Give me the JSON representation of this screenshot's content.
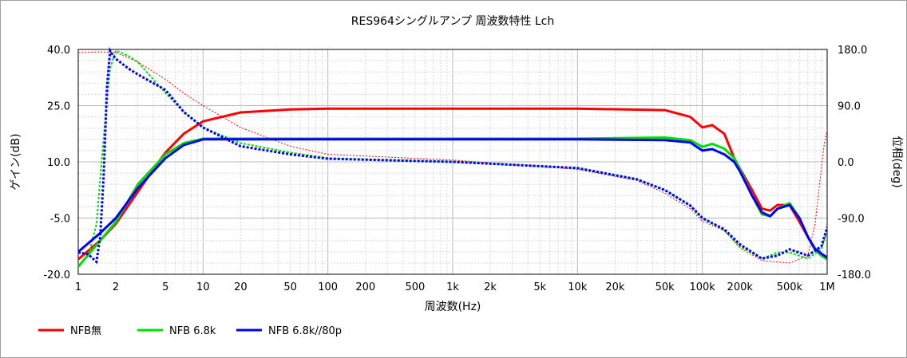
{
  "chart_data": {
    "type": "line",
    "title": "RES964シングルアンプ 周波数特性 Lch",
    "xlabel": "周波数(Hz)",
    "ylabel_left": "ゲイン(dB)",
    "ylabel_right": "位相(deg)",
    "x_scale": "log",
    "xlim": [
      1,
      1000000
    ],
    "ylim_left": [
      -20,
      40
    ],
    "ylim_right": [
      -180,
      180
    ],
    "grid": true,
    "legend_position": "bottom-left",
    "x_ticks": [
      "1",
      "2",
      "5",
      "10",
      "20",
      "50",
      "100",
      "200",
      "500",
      "1k",
      "2k",
      "5k",
      "10k",
      "20k",
      "50k",
      "100k",
      "200k",
      "500k",
      "1M"
    ],
    "x_tick_values": [
      1,
      2,
      5,
      10,
      20,
      50,
      100,
      200,
      500,
      1000,
      2000,
      5000,
      10000,
      20000,
      50000,
      100000,
      200000,
      500000,
      1000000
    ],
    "y_ticks_left": [
      "40.0",
      "25.0",
      "10.0",
      "-5.0",
      "-20.0"
    ],
    "y_tick_values_left": [
      40,
      25,
      10,
      -5,
      -20
    ],
    "y_ticks_right": [
      "180.0",
      "90.0",
      "0.0",
      "-90.0",
      "-180.0"
    ],
    "y_tick_values_right": [
      180,
      90,
      0,
      -90,
      -180
    ],
    "series": [
      {
        "name": "NFB無",
        "color": "#ff0000",
        "gain": {
          "x": [
            1,
            1.5,
            2,
            3,
            4,
            5,
            7,
            10,
            20,
            50,
            100,
            1000,
            10000,
            50000,
            80000,
            100000,
            120000,
            150000,
            180000,
            200000,
            250000,
            300000,
            350000,
            400000,
            500000,
            600000,
            700000,
            800000,
            900000,
            1000000
          ],
          "y": [
            -16,
            -11,
            -6.5,
            2,
            8,
            12.5,
            17.5,
            20.8,
            23.2,
            24,
            24.2,
            24.2,
            24.2,
            23.8,
            22,
            19.2,
            19.8,
            17.5,
            11,
            8.2,
            2.5,
            -2.5,
            -3,
            -1.5,
            -1.5,
            -6,
            -10,
            -13.5,
            -15,
            -16
          ]
        },
        "phase": {
          "x": [
            1,
            1.5,
            2,
            3,
            5,
            7,
            10,
            20,
            50,
            100,
            1000,
            10000,
            30000,
            50000,
            80000,
            100000,
            150000,
            200000,
            300000,
            500000,
            700000,
            800000,
            900000,
            950000,
            1000000,
            1050000
          ],
          "y": [
            175,
            176,
            175,
            160,
            132,
            110,
            90,
            55,
            25,
            12,
            3,
            -12,
            -30,
            -50,
            -75,
            -95,
            -110,
            -138,
            -158,
            -162,
            -150,
            -100,
            -10,
            30,
            50,
            160
          ]
        }
      },
      {
        "name": "NFB 6.8k",
        "color": "#00e000",
        "gain": {
          "x": [
            1,
            1.5,
            2,
            3,
            5,
            7,
            10,
            20,
            100,
            1000,
            10000,
            50000,
            80000,
            100000,
            120000,
            150000,
            180000,
            200000,
            250000,
            300000,
            350000,
            400000,
            500000,
            600000,
            700000,
            800000,
            900000,
            1000000
          ],
          "y": [
            -18,
            -11,
            -6,
            4,
            12,
            15,
            16.2,
            16.2,
            16.2,
            16.2,
            16.2,
            16.5,
            15.8,
            14,
            14.8,
            13.5,
            11,
            8,
            1,
            -4,
            -4.5,
            -2.5,
            -1,
            -5,
            -10,
            -13.5,
            -15,
            -16
          ]
        },
        "phase": {
          "x": [
            1,
            1.2,
            1.4,
            1.6,
            1.8,
            2,
            2.5,
            3,
            5,
            7,
            10,
            20,
            50,
            100,
            1000,
            10000,
            30000,
            50000,
            80000,
            100000,
            150000,
            200000,
            300000,
            400000,
            500000,
            700000,
            900000,
            1000000,
            1050000
          ],
          "y": [
            -145,
            -150,
            -100,
            40,
            150,
            178,
            170,
            160,
            110,
            80,
            55,
            30,
            15,
            6,
            0,
            -10,
            -28,
            -45,
            -70,
            -90,
            -110,
            -135,
            -155,
            -145,
            -145,
            -155,
            -140,
            -110,
            -100
          ]
        }
      },
      {
        "name": "NFB 6.8k//80p",
        "color": "#0000ff",
        "gain": {
          "x": [
            1,
            1.5,
            2,
            3,
            5,
            7,
            10,
            20,
            100,
            1000,
            10000,
            50000,
            80000,
            100000,
            120000,
            150000,
            180000,
            200000,
            250000,
            300000,
            350000,
            400000,
            500000,
            600000,
            700000,
            800000,
            900000,
            1000000,
            1050000
          ],
          "y": [
            -14,
            -9,
            -5,
            3,
            11,
            14.5,
            16,
            16,
            16,
            16,
            16,
            15.8,
            15.2,
            13,
            13.4,
            12,
            10,
            7.5,
            1,
            -3.5,
            -4.5,
            -2.5,
            -1.5,
            -5,
            -10,
            -13.2,
            -14.5,
            -15.5,
            -16
          ]
        },
        "phase": {
          "x": [
            1,
            1.2,
            1.4,
            1.5,
            1.6,
            1.7,
            1.8,
            1.9,
            2,
            2.5,
            3,
            5,
            7,
            10,
            20,
            50,
            100,
            1000,
            10000,
            30000,
            50000,
            80000,
            100000,
            150000,
            200000,
            300000,
            400000,
            500000,
            700000,
            900000,
            1000000,
            1050000
          ],
          "y": [
            -145,
            -148,
            -160,
            -120,
            -20,
            120,
            178,
            170,
            165,
            150,
            140,
            115,
            80,
            55,
            25,
            12,
            5,
            0,
            -10,
            -28,
            -45,
            -70,
            -90,
            -108,
            -132,
            -155,
            -150,
            -140,
            -150,
            -135,
            -105,
            -100
          ]
        }
      }
    ]
  }
}
